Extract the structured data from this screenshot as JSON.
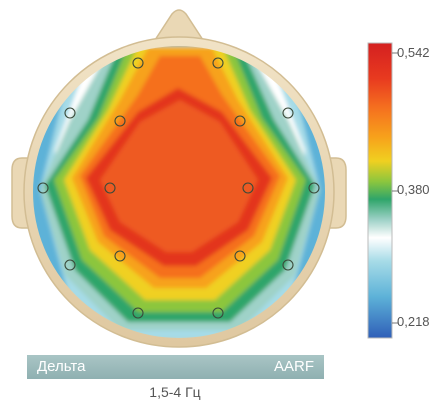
{
  "scale": {
    "max_label": "0,542",
    "mid_label": "0,380",
    "min_label": "0,218",
    "colors": [
      "#d42020",
      "#f5601f",
      "#f7a21b",
      "#f0d020",
      "#8cc63e",
      "#2fa56a",
      "#9fd2c8",
      "#ffffff",
      "#a6dbe7",
      "#5db2d8",
      "#2f6dbd"
    ]
  },
  "band": {
    "name": "Дельта",
    "method": "AARF",
    "range": "1,5-4 Гц",
    "color": "#99b8b9"
  },
  "head": {
    "skin_color": "#ead8b5"
  },
  "electrode_count": 16
}
